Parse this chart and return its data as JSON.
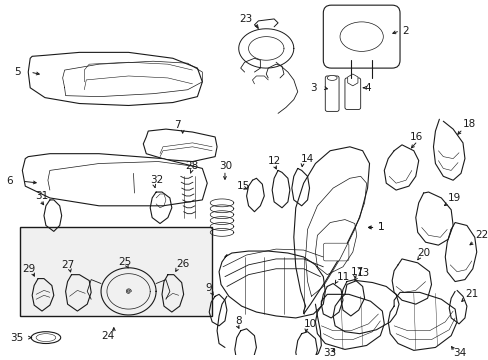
{
  "bg_color": "#ffffff",
  "line_color": "#1a1a1a",
  "fig_width": 4.89,
  "fig_height": 3.6,
  "dpi": 100,
  "fontsize": 7.5,
  "lw": 0.8
}
